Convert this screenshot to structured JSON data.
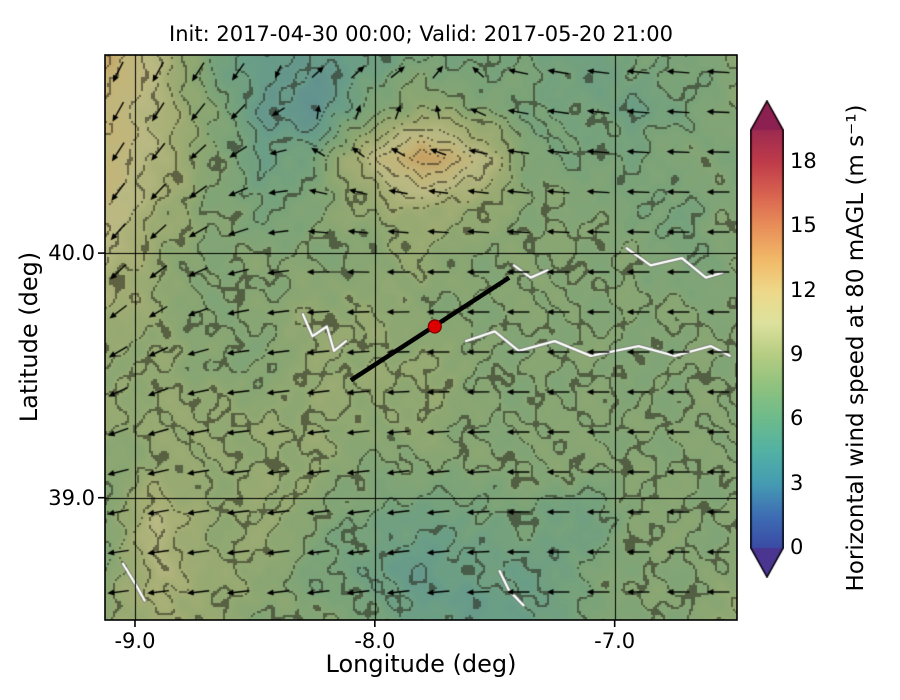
{
  "figure": {
    "background": "#ffffff",
    "text_color": "#000000"
  },
  "chart_data": {
    "type": "heatmap",
    "title": "Init: 2017-04-30 00:00; Valid: 2017-05-20 21:00",
    "xlabel": "Longitude (deg)",
    "ylabel": "Latitude (deg)",
    "colorbar_label": "Horizontal wind speed at 80 mAGL (m s⁻¹)",
    "xlim": [
      -9.125,
      -6.49
    ],
    "ylim": [
      38.5,
      40.81
    ],
    "xticks": [
      -9.0,
      -8.0,
      -7.0
    ],
    "xtick_labels": [
      "-9.0",
      "-8.0",
      "-7.0"
    ],
    "yticks": [
      39.0,
      40.0
    ],
    "ytick_labels": [
      "39.0",
      "40.0"
    ],
    "grid": true,
    "grid_color": "#000000",
    "colorbar_ticks": [
      0,
      3,
      6,
      9,
      12,
      15,
      18
    ],
    "colorbar_tick_labels": [
      "0",
      "3",
      "6",
      "9",
      "12",
      "15",
      "18"
    ],
    "colorbar_range": [
      0,
      19.5
    ],
    "colormap": {
      "stops": [
        [
          0,
          "#3b4ba5"
        ],
        [
          1.5,
          "#3e6db4"
        ],
        [
          3,
          "#459cb3"
        ],
        [
          4.5,
          "#52b2a5"
        ],
        [
          6,
          "#6dbb8d"
        ],
        [
          7.5,
          "#8ec27f"
        ],
        [
          9,
          "#b5cd82"
        ],
        [
          10.5,
          "#dde29e"
        ],
        [
          12,
          "#eed98a"
        ],
        [
          13.5,
          "#f2b968"
        ],
        [
          15,
          "#e9905a"
        ],
        [
          16.5,
          "#d96450"
        ],
        [
          18,
          "#c03c4a"
        ],
        [
          19.5,
          "#9e2b50"
        ]
      ],
      "under": "#4a3590",
      "over": "#8c2050"
    },
    "wind_speed_grid": {
      "units": "m s-1",
      "lons": [
        -9.13,
        -8.91,
        -8.69,
        -8.47,
        -8.25,
        -8.03,
        -7.81,
        -7.59,
        -7.37,
        -7.15,
        -6.93,
        -6.71,
        -6.49
      ],
      "lats_north_to_south": [
        40.81,
        40.6,
        40.39,
        40.18,
        39.97,
        39.76,
        39.55,
        39.34,
        39.13,
        38.92,
        38.71,
        38.5
      ],
      "values": [
        [
          13,
          10,
          6,
          4,
          4,
          5,
          6,
          6,
          6,
          5,
          6,
          6,
          7
        ],
        [
          12,
          10,
          7,
          4,
          3,
          6,
          8,
          7,
          6,
          6,
          5,
          6,
          7
        ],
        [
          12,
          10,
          7,
          5,
          6,
          10,
          14,
          11,
          7,
          6,
          6,
          7,
          6
        ],
        [
          11,
          9,
          7,
          6,
          7,
          8,
          9,
          8,
          7,
          7,
          6,
          6,
          7
        ],
        [
          10,
          8,
          7,
          7,
          7,
          7,
          8,
          7,
          7,
          7,
          7,
          6,
          7
        ],
        [
          9,
          8,
          7,
          7,
          8,
          8,
          7,
          7,
          7,
          7,
          7,
          7,
          7
        ],
        [
          8,
          8,
          7,
          7,
          8,
          8,
          8,
          7,
          7,
          7,
          7,
          7,
          7
        ],
        [
          8,
          8,
          8,
          8,
          8,
          8,
          8,
          7,
          7,
          7,
          7,
          7,
          7
        ],
        [
          7,
          8,
          8,
          8,
          8,
          7,
          7,
          7,
          7,
          7,
          7,
          7,
          7
        ],
        [
          7,
          10,
          8,
          8,
          7,
          6,
          5,
          6,
          6,
          5,
          7,
          7,
          7
        ],
        [
          7,
          10,
          8,
          8,
          6,
          5,
          4,
          5,
          5,
          6,
          7,
          7,
          7
        ],
        [
          8,
          9,
          8,
          7,
          7,
          6,
          5,
          4,
          5,
          6,
          7,
          7,
          8
        ]
      ]
    },
    "quiver": {
      "arrow_color": "#000000",
      "lons": [
        -9.0,
        -8.6,
        -8.2,
        -7.8,
        -7.4,
        -7.0,
        -6.6
      ],
      "lats_north_to_south": [
        40.7,
        40.3,
        39.9,
        39.5,
        39.1,
        38.7
      ],
      "u": [
        [
          -0.4,
          -0.5,
          0.35,
          0.4,
          -0.7,
          -0.9,
          -0.9
        ],
        [
          -0.5,
          -0.7,
          -0.5,
          -0.6,
          -0.9,
          -0.9,
          -0.9
        ],
        [
          -0.6,
          -0.8,
          -0.9,
          -0.9,
          -0.9,
          -0.9,
          -0.9
        ],
        [
          -0.7,
          -0.9,
          -0.9,
          -0.9,
          -0.9,
          -0.9,
          -0.9
        ],
        [
          -0.8,
          -0.9,
          -0.9,
          -0.9,
          -0.9,
          -0.9,
          -0.9
        ],
        [
          -0.8,
          -0.9,
          -0.9,
          -0.9,
          -0.9,
          -0.9,
          -0.9
        ]
      ],
      "v": [
        [
          -0.8,
          -0.7,
          0.35,
          0.3,
          0.15,
          0.1,
          0.05
        ],
        [
          -0.7,
          -0.35,
          0.2,
          0.1,
          0.1,
          0.05,
          0.0
        ],
        [
          -0.55,
          -0.2,
          0.0,
          0.0,
          0.0,
          0.0,
          0.0
        ],
        [
          -0.35,
          -0.1,
          -0.1,
          0.0,
          0.0,
          0.0,
          0.0
        ],
        [
          -0.2,
          -0.1,
          -0.1,
          -0.1,
          0.0,
          0.0,
          0.0
        ],
        [
          -0.1,
          -0.1,
          -0.1,
          -0.1,
          0.0,
          0.0,
          0.0
        ]
      ]
    },
    "transect": {
      "color": "#000000",
      "start": {
        "lon": -8.1,
        "lat": 39.48
      },
      "end": {
        "lon": -7.44,
        "lat": 39.9
      }
    },
    "marker": {
      "lon": -7.75,
      "lat": 39.7,
      "color": "#dd0000"
    },
    "rivers": [
      [
        [
          -8.3,
          39.75
        ],
        [
          -8.26,
          39.66
        ],
        [
          -8.2,
          39.7
        ],
        [
          -8.17,
          39.6
        ],
        [
          -8.12,
          39.64
        ]
      ],
      [
        [
          -7.62,
          39.64
        ],
        [
          -7.5,
          39.68
        ],
        [
          -7.4,
          39.6
        ],
        [
          -7.25,
          39.64
        ],
        [
          -7.1,
          39.58
        ],
        [
          -6.9,
          39.62
        ],
        [
          -6.75,
          39.58
        ],
        [
          -6.6,
          39.62
        ],
        [
          -6.52,
          39.58
        ]
      ],
      [
        [
          -6.95,
          40.02
        ],
        [
          -6.85,
          39.95
        ],
        [
          -6.72,
          39.98
        ],
        [
          -6.62,
          39.9
        ],
        [
          -6.55,
          39.92
        ]
      ],
      [
        [
          -7.42,
          39.95
        ],
        [
          -7.35,
          39.9
        ],
        [
          -7.28,
          39.93
        ]
      ],
      [
        [
          -7.48,
          38.7
        ],
        [
          -7.44,
          38.62
        ],
        [
          -7.38,
          38.56
        ]
      ],
      [
        [
          -9.05,
          38.73
        ],
        [
          -9.0,
          38.65
        ],
        [
          -8.96,
          38.58
        ]
      ]
    ]
  }
}
